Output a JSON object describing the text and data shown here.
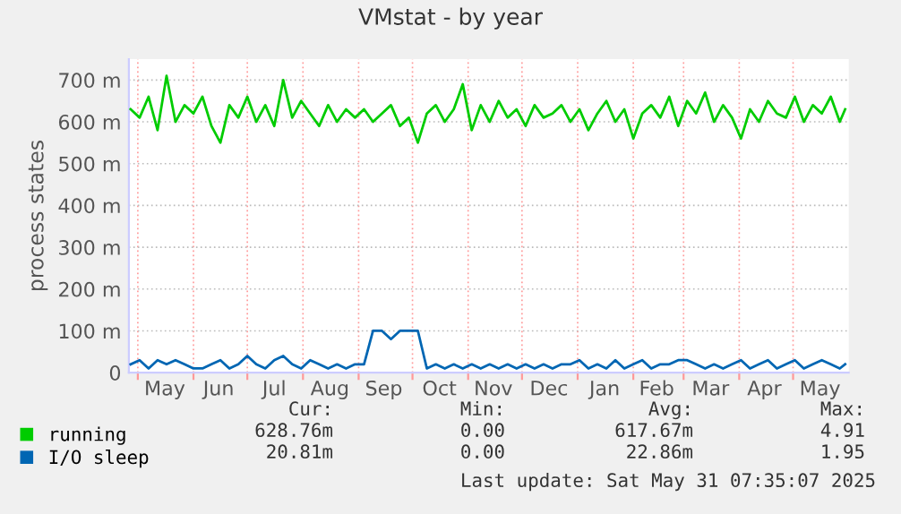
{
  "chart_data": {
    "type": "line",
    "title": "VMstat - by year",
    "ylabel": "process states",
    "x": [
      "2024-04-27",
      "2024-05-02",
      "2024-05-07",
      "2024-05-12",
      "2024-05-17",
      "2024-05-22",
      "2024-05-27",
      "2024-06-01",
      "2024-06-06",
      "2024-06-11",
      "2024-06-16",
      "2024-06-21",
      "2024-06-26",
      "2024-07-01",
      "2024-07-06",
      "2024-07-11",
      "2024-07-16",
      "2024-07-21",
      "2024-07-26",
      "2024-07-31",
      "2024-08-05",
      "2024-08-10",
      "2024-08-15",
      "2024-08-20",
      "2024-08-25",
      "2024-08-30",
      "2024-09-04",
      "2024-09-09",
      "2024-09-14",
      "2024-09-19",
      "2024-09-24",
      "2024-09-29",
      "2024-10-04",
      "2024-10-09",
      "2024-10-14",
      "2024-10-19",
      "2024-10-24",
      "2024-10-29",
      "2024-11-03",
      "2024-11-08",
      "2024-11-13",
      "2024-11-18",
      "2024-11-23",
      "2024-11-28",
      "2024-12-03",
      "2024-12-08",
      "2024-12-13",
      "2024-12-18",
      "2024-12-23",
      "2024-12-28",
      "2025-01-02",
      "2025-01-07",
      "2025-01-12",
      "2025-01-17",
      "2025-01-22",
      "2025-01-27",
      "2025-02-01",
      "2025-02-06",
      "2025-02-11",
      "2025-02-16",
      "2025-02-21",
      "2025-02-26",
      "2025-03-03",
      "2025-03-08",
      "2025-03-13",
      "2025-03-18",
      "2025-03-23",
      "2025-03-28",
      "2025-04-02",
      "2025-04-07",
      "2025-04-12",
      "2025-04-17",
      "2025-04-22",
      "2025-04-27",
      "2025-05-02",
      "2025-05-07",
      "2025-05-12",
      "2025-05-17",
      "2025-05-22",
      "2025-05-27",
      "2025-05-30"
    ],
    "series": [
      {
        "name": "running",
        "color": "#00cc00",
        "values": [
          630,
          610,
          660,
          580,
          710,
          600,
          640,
          620,
          660,
          590,
          550,
          640,
          610,
          660,
          600,
          640,
          590,
          700,
          610,
          650,
          620,
          590,
          640,
          600,
          630,
          610,
          630,
          600,
          620,
          640,
          590,
          610,
          550,
          620,
          640,
          600,
          630,
          690,
          580,
          640,
          600,
          650,
          610,
          630,
          590,
          640,
          610,
          620,
          640,
          600,
          630,
          580,
          620,
          650,
          600,
          630,
          560,
          620,
          640,
          610,
          660,
          590,
          650,
          620,
          670,
          600,
          640,
          610,
          560,
          630,
          600,
          650,
          620,
          610,
          660,
          600,
          640,
          620,
          660,
          600,
          630
        ]
      },
      {
        "name": "I/O sleep",
        "color": "#0066b3",
        "values": [
          20,
          30,
          10,
          30,
          20,
          30,
          20,
          10,
          10,
          20,
          30,
          10,
          20,
          40,
          20,
          10,
          30,
          40,
          20,
          10,
          30,
          20,
          10,
          20,
          10,
          20,
          20,
          100,
          100,
          80,
          100,
          100,
          100,
          10,
          20,
          10,
          20,
          10,
          20,
          10,
          20,
          10,
          20,
          10,
          20,
          10,
          20,
          10,
          20,
          20,
          30,
          10,
          20,
          10,
          30,
          10,
          20,
          30,
          10,
          20,
          20,
          30,
          30,
          20,
          10,
          20,
          10,
          20,
          30,
          10,
          20,
          30,
          10,
          20,
          30,
          10,
          20,
          30,
          20,
          10,
          20
        ]
      }
    ],
    "xlim": [
      "2024-04-26",
      "2025-06-01"
    ],
    "xticks": [
      {
        "value": "2024-05-01",
        "label": null
      },
      {
        "value": "2024-05-16",
        "label": "May"
      },
      {
        "value": "2024-06-01",
        "label": null
      },
      {
        "value": "2024-06-15",
        "label": "Jun"
      },
      {
        "value": "2024-07-01",
        "label": null
      },
      {
        "value": "2024-07-16",
        "label": "Jul"
      },
      {
        "value": "2024-08-01",
        "label": null
      },
      {
        "value": "2024-08-16",
        "label": "Aug"
      },
      {
        "value": "2024-09-01",
        "label": null
      },
      {
        "value": "2024-09-15",
        "label": "Sep"
      },
      {
        "value": "2024-10-01",
        "label": null
      },
      {
        "value": "2024-10-16",
        "label": "Oct"
      },
      {
        "value": "2024-11-01",
        "label": null
      },
      {
        "value": "2024-11-15",
        "label": "Nov"
      },
      {
        "value": "2024-12-01",
        "label": null
      },
      {
        "value": "2024-12-16",
        "label": "Dec"
      },
      {
        "value": "2025-01-01",
        "label": null
      },
      {
        "value": "2025-01-16",
        "label": "Jan"
      },
      {
        "value": "2025-02-01",
        "label": null
      },
      {
        "value": "2025-02-14",
        "label": "Feb"
      },
      {
        "value": "2025-03-01",
        "label": null
      },
      {
        "value": "2025-03-16",
        "label": "Mar"
      },
      {
        "value": "2025-04-01",
        "label": null
      },
      {
        "value": "2025-04-15",
        "label": "Apr"
      },
      {
        "value": "2025-05-01",
        "label": null
      },
      {
        "value": "2025-05-16",
        "label": "May"
      }
    ],
    "ylim": [
      0,
      750
    ],
    "yticks": [
      0,
      {
        "value": 100,
        "label": "100 m"
      },
      {
        "value": 200,
        "label": "200 m"
      },
      {
        "value": 300,
        "label": "300 m"
      },
      {
        "value": 400,
        "label": "400 m"
      },
      {
        "value": 500,
        "label": "500 m"
      },
      {
        "value": 600,
        "label": "600 m"
      },
      {
        "value": 700,
        "label": "700 m"
      }
    ],
    "grid": true,
    "legend": "bottom left",
    "annotations": [
      "Cur:",
      "Min:",
      "Avg:",
      "Max:",
      "628.76m",
      "0.00",
      "617.67m",
      "4.91",
      "20.81m",
      "0.00",
      "22.86m",
      "1.95",
      "Last update: Sat May 31 07:35:07 2025"
    ]
  }
}
